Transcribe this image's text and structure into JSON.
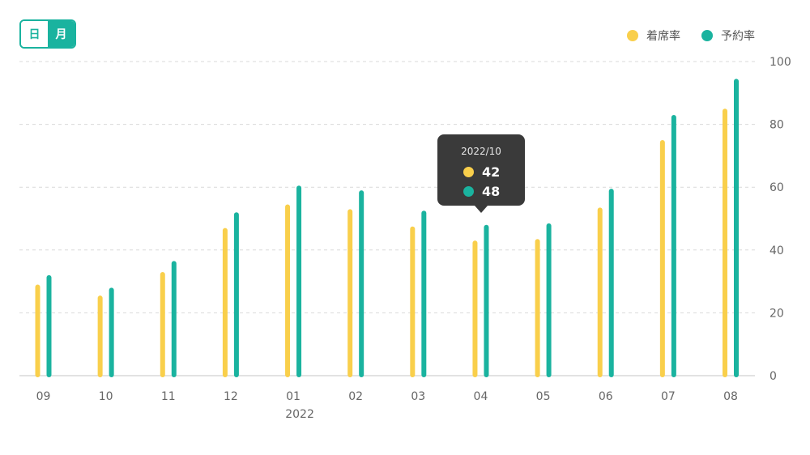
{
  "toggle": {
    "day_label": "日",
    "month_label": "月",
    "selected": "month"
  },
  "legend": {
    "attendance_label": "着席率",
    "reservation_label": "予約率"
  },
  "colors": {
    "attendance": "#f9cf4b",
    "reservation": "#1ab39f",
    "grid": "#d9d9d9",
    "tooltip_bg": "#3a3a3a"
  },
  "tooltip": {
    "title": "2022/10",
    "attendance_value": "42",
    "reservation_value": "48"
  },
  "chart_data": {
    "type": "bar",
    "categories": [
      "09",
      "10",
      "11",
      "12",
      "01",
      "02",
      "03",
      "04",
      "05",
      "06",
      "07",
      "08"
    ],
    "year_labels": [
      {
        "category": "01",
        "label": "2022"
      }
    ],
    "series": [
      {
        "name": "着席率",
        "values": [
          29,
          25.5,
          33,
          47,
          54.5,
          53,
          47.5,
          43,
          43.5,
          53.5,
          75,
          85
        ]
      },
      {
        "name": "予約率",
        "values": [
          32,
          28,
          36.5,
          52,
          60.5,
          59,
          52.5,
          48,
          48.5,
          59.5,
          83,
          94.5
        ]
      }
    ],
    "yticks": [
      "0",
      "20",
      "40",
      "60",
      "80",
      "100"
    ],
    "ylim": [
      0,
      100
    ],
    "y_axis_side": "right",
    "grid": true,
    "legend_position": "top-right"
  }
}
